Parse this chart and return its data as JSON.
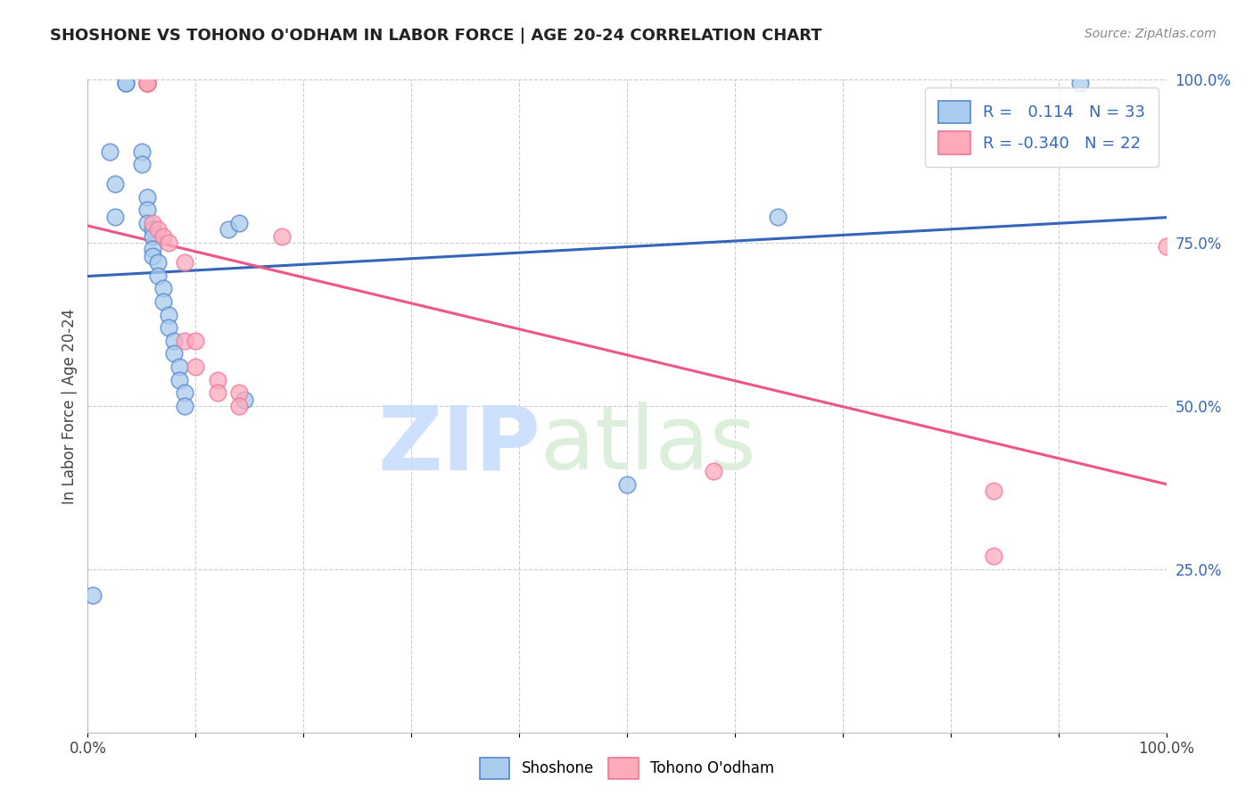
{
  "title": "SHOSHONE VS TOHONO O'ODHAM IN LABOR FORCE | AGE 20-24 CORRELATION CHART",
  "source": "Source: ZipAtlas.com",
  "ylabel": "In Labor Force | Age 20-24",
  "xlim": [
    0,
    1.0
  ],
  "ylim": [
    0,
    1.0
  ],
  "ytick_right_labels": [
    "25.0%",
    "50.0%",
    "75.0%",
    "100.0%"
  ],
  "ytick_right_values": [
    0.25,
    0.5,
    0.75,
    1.0
  ],
  "shoshone_fill": "#AACCEE",
  "shoshone_edge": "#5588CC",
  "tohono_fill": "#FFAABB",
  "tohono_edge": "#EE7799",
  "shoshone_line_color": "#3366BB",
  "tohono_line_color": "#EE5588",
  "R_shoshone": 0.114,
  "N_shoshone": 33,
  "R_tohono": -0.34,
  "N_tohono": 22,
  "shoshone_x": [
    0.005,
    0.02,
    0.025,
    0.025,
    0.035,
    0.035,
    0.05,
    0.05,
    0.055,
    0.055,
    0.055,
    0.06,
    0.06,
    0.06,
    0.06,
    0.065,
    0.065,
    0.07,
    0.07,
    0.075,
    0.075,
    0.08,
    0.08,
    0.085,
    0.085,
    0.09,
    0.09,
    0.13,
    0.14,
    0.145,
    0.5,
    0.64,
    0.92
  ],
  "shoshone_y": [
    0.21,
    0.89,
    0.84,
    0.79,
    0.995,
    0.995,
    0.89,
    0.87,
    0.82,
    0.8,
    0.78,
    0.77,
    0.76,
    0.74,
    0.73,
    0.72,
    0.7,
    0.68,
    0.66,
    0.64,
    0.62,
    0.6,
    0.58,
    0.56,
    0.54,
    0.52,
    0.5,
    0.77,
    0.78,
    0.51,
    0.38,
    0.79,
    0.995
  ],
  "tohono_x": [
    0.055,
    0.055,
    0.055,
    0.055,
    0.055,
    0.06,
    0.065,
    0.07,
    0.075,
    0.09,
    0.09,
    0.1,
    0.1,
    0.12,
    0.12,
    0.14,
    0.14,
    0.18,
    0.58,
    0.84,
    0.84,
    1.0
  ],
  "tohono_y": [
    0.995,
    0.995,
    0.995,
    0.995,
    0.995,
    0.78,
    0.77,
    0.76,
    0.75,
    0.72,
    0.6,
    0.6,
    0.56,
    0.54,
    0.52,
    0.52,
    0.5,
    0.76,
    0.4,
    0.37,
    0.27,
    0.745
  ],
  "watermark_zip": "ZIP",
  "watermark_atlas": "atlas",
  "background_color": "#FFFFFF",
  "grid_color": "#CCCCCC"
}
